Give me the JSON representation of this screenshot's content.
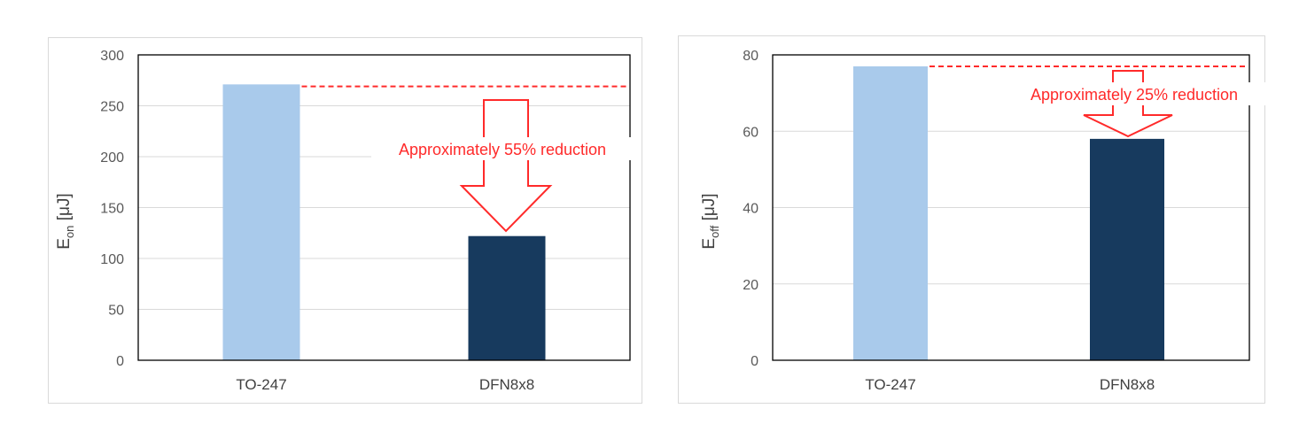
{
  "chart_data": [
    {
      "type": "bar",
      "categories": [
        "TO-247",
        "DFN8x8"
      ],
      "values": [
        271,
        122
      ],
      "colors": [
        "#a9caeb",
        "#173a5e"
      ],
      "ylabel_main": "E",
      "ylabel_sub": "on",
      "ylabel_unit": " [μJ]",
      "ylim": [
        0,
        300
      ],
      "yticks": [
        "0",
        "50",
        "100",
        "150",
        "200",
        "250",
        "300"
      ],
      "grid": true,
      "reference_line_value": 269,
      "annotation": "Approximately 55% reduction",
      "annotation_color": "#ff2a2a"
    },
    {
      "type": "bar",
      "categories": [
        "TO-247",
        "DFN8x8"
      ],
      "values": [
        77,
        58
      ],
      "colors": [
        "#a9caeb",
        "#173a5e"
      ],
      "ylabel_main": "E",
      "ylabel_sub": "off",
      "ylabel_unit": " [μJ]",
      "ylim": [
        0,
        80
      ],
      "yticks": [
        "0",
        "20",
        "40",
        "60",
        "80"
      ],
      "grid": true,
      "reference_line_value": 77,
      "annotation": "Approximately 25% reduction",
      "annotation_color": "#ff2a2a"
    }
  ]
}
